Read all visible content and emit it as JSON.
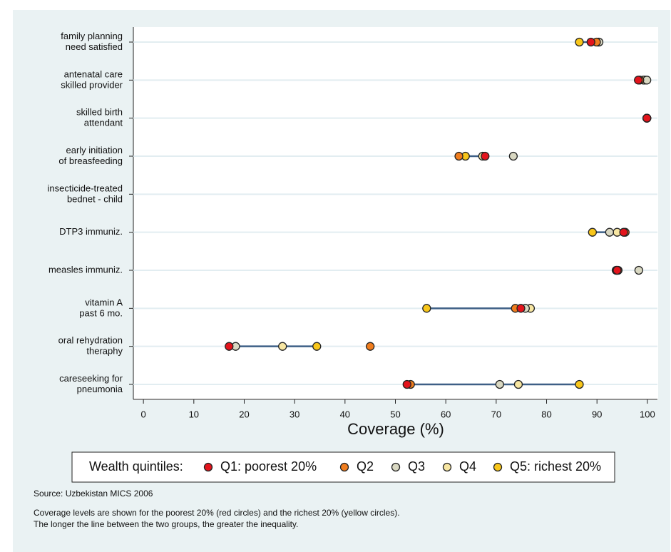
{
  "chart_data": {
    "type": "dot",
    "categories": [
      [
        "family planning",
        "need satisfied"
      ],
      [
        "antenatal care",
        "skilled provider"
      ],
      [
        "skilled birth",
        "attendant"
      ],
      [
        "early initiation",
        "of breasfeeding"
      ],
      [
        "insecticide-treated",
        "bednet - child"
      ],
      [
        "DTP3 immuniz."
      ],
      [
        "measles immuniz."
      ],
      [
        "vitamin A",
        "past 6 mo."
      ],
      [
        "oral rehydration",
        "theraphy"
      ],
      [
        "careseeking for",
        "pneumonia"
      ]
    ],
    "series": [
      {
        "name": "Q1: poorest 20%",
        "color": "#e3141c",
        "values": [
          88.8,
          98.2,
          99.9,
          67.8,
          null,
          95.3,
          94.0,
          74.9,
          17.0,
          52.3
        ]
      },
      {
        "name": "Q2",
        "color": "#f07d1e",
        "values": [
          89.9,
          98.5,
          99.9,
          62.6,
          null,
          95.6,
          94.2,
          73.8,
          45.0,
          53.0
        ]
      },
      {
        "name": "Q3",
        "color": "#d9d8c2",
        "values": [
          90.4,
          99.9,
          99.9,
          73.4,
          null,
          92.5,
          98.3,
          75.8,
          18.3,
          70.7
        ]
      },
      {
        "name": "Q4",
        "color": "#f7e6a2",
        "values": [
          90.2,
          99.2,
          99.9,
          67.3,
          null,
          94.0,
          93.9,
          76.8,
          27.6,
          74.4
        ]
      },
      {
        "name": "Q5: richest 20%",
        "color": "#f8c61a",
        "values": [
          86.5,
          99.5,
          99.9,
          63.9,
          null,
          89.1,
          93.8,
          56.2,
          34.4,
          86.5
        ]
      }
    ],
    "line_color": "#3d5f86",
    "xlim": [
      -2,
      102
    ],
    "xticks": [
      0,
      10,
      20,
      30,
      40,
      50,
      60,
      70,
      80,
      90,
      100
    ],
    "xlabel": "Coverage (%)",
    "legend_title": "Wealth quintiles:",
    "grid": true,
    "source": "Source: Uzbekistan MICS 2006",
    "notes": [
      "Coverage levels are shown for the poorest 20% (red circles) and the richest 20% (yellow circles).",
      "The longer the line between the two groups, the greater the inequality."
    ]
  }
}
